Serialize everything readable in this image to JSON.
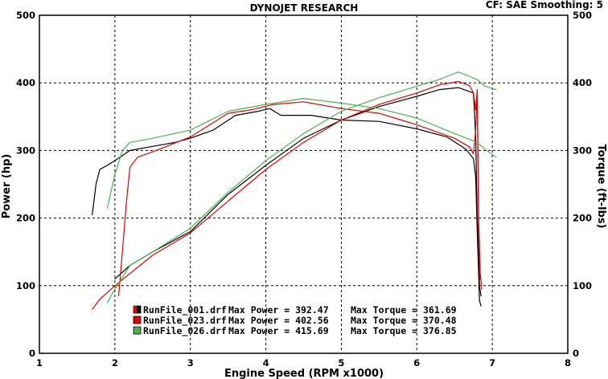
{
  "header": {
    "title": "DYNOJET RESEARCH",
    "settings": "CF: SAE  Smoothing: 5"
  },
  "chart_data": {
    "type": "line",
    "title": "DYNOJET RESEARCH",
    "xlabel": "Engine Speed (RPM x1000)",
    "ylabel_left": "Power (hp)",
    "ylabel_right": "Torque (ft-lbs)",
    "xlim": [
      1,
      8
    ],
    "ylim": [
      0,
      500
    ],
    "x_ticks": [
      "1",
      "2",
      "3",
      "4",
      "5",
      "6",
      "7",
      "8"
    ],
    "y_ticks_left": [
      "0",
      "100",
      "200",
      "300",
      "400",
      "500"
    ],
    "y_ticks_right": [
      "0",
      "100",
      "200",
      "300",
      "400",
      "500"
    ],
    "grid": true,
    "legend_position": "bottom-left",
    "series": [
      {
        "name": "RunFile_001.drf",
        "color": "#000000",
        "legend": {
          "file": "RunFile_001.drf",
          "max_power_text": "Max Power = 392.47",
          "max_torque_text": "Max Torque = 361.69"
        },
        "torque": [
          [
            1.7,
            205
          ],
          [
            1.75,
            250
          ],
          [
            1.8,
            272
          ],
          [
            1.9,
            278
          ],
          [
            2.0,
            285
          ],
          [
            2.2,
            300
          ],
          [
            2.5,
            306
          ],
          [
            2.8,
            312
          ],
          [
            3.0,
            318
          ],
          [
            3.3,
            330
          ],
          [
            3.6,
            352
          ],
          [
            3.9,
            358
          ],
          [
            4.05,
            362
          ],
          [
            4.2,
            352
          ],
          [
            4.6,
            352
          ],
          [
            5.0,
            345
          ],
          [
            5.5,
            343
          ],
          [
            6.0,
            332
          ],
          [
            6.4,
            320
          ],
          [
            6.65,
            302
          ],
          [
            6.75,
            288
          ],
          [
            6.78,
            260
          ],
          [
            6.8,
            180
          ],
          [
            6.83,
            78
          ],
          [
            6.85,
            70
          ]
        ],
        "power": [
          [
            2.0,
            110
          ],
          [
            2.2,
            130
          ],
          [
            2.5,
            150
          ],
          [
            3.0,
            180
          ],
          [
            3.5,
            235
          ],
          [
            4.0,
            278
          ],
          [
            4.5,
            318
          ],
          [
            5.0,
            345
          ],
          [
            5.5,
            365
          ],
          [
            6.0,
            380
          ],
          [
            6.3,
            390
          ],
          [
            6.55,
            393
          ],
          [
            6.75,
            385
          ],
          [
            6.78,
            320
          ],
          [
            6.8,
            200
          ],
          [
            6.83,
            100
          ],
          [
            6.85,
            85
          ]
        ]
      },
      {
        "name": "RunFile_023.drf",
        "color": "#e00000",
        "legend": {
          "file": "RunFile_023.drf",
          "max_power_text": "Max Power = 402.56",
          "max_torque_text": "Max Torque = 370.48"
        },
        "torque": [
          [
            2.05,
            85
          ],
          [
            2.1,
            150
          ],
          [
            2.15,
            220
          ],
          [
            2.2,
            275
          ],
          [
            2.3,
            290
          ],
          [
            2.5,
            298
          ],
          [
            3.0,
            320
          ],
          [
            3.5,
            355
          ],
          [
            3.8,
            360
          ],
          [
            4.1,
            368
          ],
          [
            4.5,
            372
          ],
          [
            5.0,
            362
          ],
          [
            5.5,
            355
          ],
          [
            6.0,
            338
          ],
          [
            6.5,
            318
          ],
          [
            6.7,
            305
          ],
          [
            6.75,
            295
          ],
          [
            6.78,
            330
          ],
          [
            6.8,
            385
          ],
          [
            6.82,
            200
          ],
          [
            6.84,
            120
          ],
          [
            6.86,
            95
          ]
        ],
        "power": [
          [
            1.7,
            65
          ],
          [
            1.8,
            80
          ],
          [
            2.0,
            100
          ],
          [
            2.5,
            145
          ],
          [
            3.0,
            178
          ],
          [
            3.5,
            225
          ],
          [
            4.0,
            272
          ],
          [
            4.5,
            312
          ],
          [
            5.0,
            345
          ],
          [
            5.5,
            368
          ],
          [
            6.0,
            385
          ],
          [
            6.3,
            397
          ],
          [
            6.55,
            402
          ],
          [
            6.7,
            396
          ],
          [
            6.75,
            385
          ],
          [
            6.78,
            360
          ],
          [
            6.8,
            390
          ],
          [
            6.82,
            180
          ],
          [
            6.84,
            110
          ]
        ]
      },
      {
        "name": "RunFile_026.drf",
        "color": "#4caf50",
        "legend": {
          "file": "RunFile_026.drf",
          "max_power_text": "Max Power = 415.69",
          "max_torque_text": "Max Torque = 376.85"
        },
        "torque": [
          [
            1.9,
            215
          ],
          [
            2.0,
            265
          ],
          [
            2.1,
            300
          ],
          [
            2.2,
            312
          ],
          [
            2.5,
            318
          ],
          [
            3.0,
            330
          ],
          [
            3.5,
            358
          ],
          [
            4.0,
            368
          ],
          [
            4.5,
            377
          ],
          [
            5.0,
            370
          ],
          [
            5.5,
            362
          ],
          [
            6.0,
            348
          ],
          [
            6.5,
            325
          ],
          [
            6.8,
            312
          ],
          [
            6.9,
            302
          ],
          [
            7.05,
            290
          ]
        ],
        "power": [
          [
            1.9,
            75
          ],
          [
            2.0,
            95
          ],
          [
            2.2,
            130
          ],
          [
            2.5,
            150
          ],
          [
            3.0,
            185
          ],
          [
            3.5,
            238
          ],
          [
            4.0,
            285
          ],
          [
            4.5,
            325
          ],
          [
            5.0,
            358
          ],
          [
            5.5,
            378
          ],
          [
            6.0,
            395
          ],
          [
            6.3,
            405
          ],
          [
            6.55,
            416
          ],
          [
            6.8,
            405
          ],
          [
            6.9,
            395
          ],
          [
            7.05,
            390
          ]
        ]
      }
    ]
  }
}
